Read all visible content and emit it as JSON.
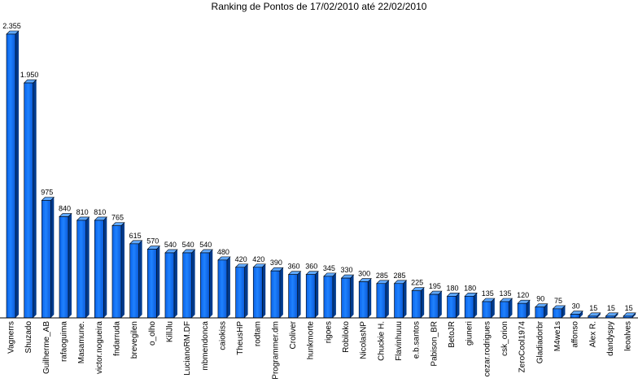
{
  "chart_data": {
    "type": "bar",
    "title": "Ranking de Pontos de 17/02/2010 até 22/02/2010",
    "xlabel": "",
    "ylabel": "",
    "ylim": [
      0,
      2355
    ],
    "grid": false,
    "legend": "none",
    "bar_color": "#1a7cff",
    "bar_dark_color": "#003a8c",
    "bar_top_color": "#5fa8ff",
    "categories": [
      "Vagnerrs",
      "Shuzado",
      "Guilherme_AB",
      "rafaoguima",
      "Masamune.",
      "victor.nogueira",
      "fndarruda",
      "brevegilen",
      "o_olho",
      "KillJlu",
      "LucianoRM.DF",
      "mbmendonca",
      "caiokiss",
      "TheusHP",
      "rodtam",
      "Programmer.dm",
      "Croliver",
      "hunkmorte",
      "rigoes",
      "Robiloko",
      "NicolasNP",
      "Chuckie H.",
      "Flavinhuuu",
      "e.b.santos",
      "Pabison_BR",
      "BetoJR",
      "giuneri",
      "cezar.rodrigues",
      "csk_orion",
      "ZeroCool1974",
      "Gladiadorbr",
      "M4we1s",
      "affonso",
      "Alex R.",
      "dandyspy",
      "leoalves"
    ],
    "values": [
      2355,
      1950,
      975,
      840,
      810,
      810,
      765,
      615,
      570,
      540,
      540,
      540,
      480,
      420,
      420,
      390,
      360,
      360,
      345,
      330,
      300,
      285,
      285,
      225,
      195,
      180,
      180,
      135,
      135,
      120,
      90,
      75,
      30,
      15,
      15,
      15
    ],
    "value_labels": [
      "2.355",
      "1.950",
      "975",
      "840",
      "810",
      "810",
      "765",
      "615",
      "570",
      "540",
      "540",
      "540",
      "480",
      "420",
      "420",
      "390",
      "360",
      "360",
      "345",
      "330",
      "300",
      "285",
      "285",
      "225",
      "195",
      "180",
      "180",
      "135",
      "135",
      "120",
      "90",
      "75",
      "30",
      "15",
      "15",
      "15"
    ]
  }
}
